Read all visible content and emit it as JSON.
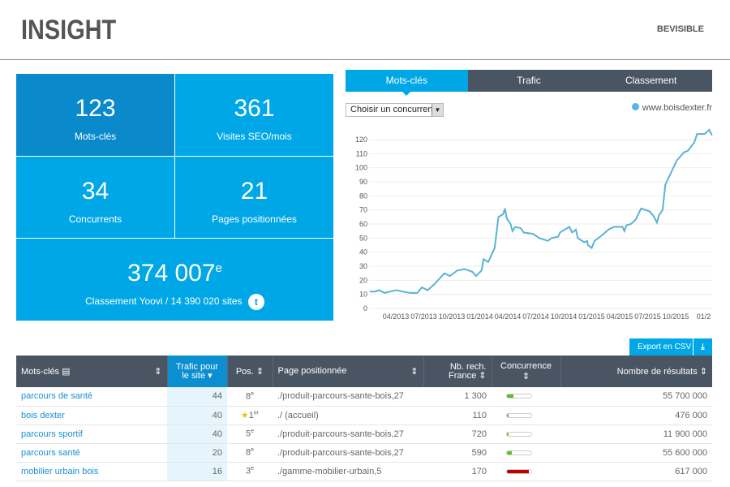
{
  "header": {
    "logo": "INSIGHT",
    "brand": "BEVISIBLE"
  },
  "tiles": [
    {
      "value": "123",
      "label": "Mots-clés"
    },
    {
      "value": "361",
      "label": "Visites SEO/mois"
    },
    {
      "value": "34",
      "label": "Concurrents"
    },
    {
      "value": "21",
      "label": "Pages positionnées"
    },
    {
      "value": "374 007",
      "sup": "e",
      "label": "Classement Yoovi / 14 390 020 sites"
    }
  ],
  "tabs": [
    "Mots-clés",
    "Trafic",
    "Classement"
  ],
  "competitor_select": "Choisir un concurrent",
  "colors": {
    "accent": "#00a7e6",
    "dark": "#4a5563",
    "line": "#5ab3d6",
    "green": "#5cbf2a",
    "red": "#c00000"
  },
  "chart_data": {
    "type": "line",
    "legend": "www.boisdexter.fr",
    "legend_position": "top-right",
    "ylim": [
      0,
      130
    ],
    "yticks": [
      0,
      10,
      20,
      30,
      40,
      50,
      60,
      70,
      80,
      90,
      100,
      110,
      120
    ],
    "xticks": [
      "04/2013",
      "07/2013",
      "10/2013",
      "01/2014",
      "04/2014",
      "07/2014",
      "10/2014",
      "01/2015",
      "04/2015",
      "07/2015",
      "10/2015",
      "01/2"
    ],
    "x_unit": "months since 04/2013",
    "series": [
      {
        "name": "www.boisdexter.fr",
        "points": [
          [
            -2.8,
            12
          ],
          [
            -2.2,
            12
          ],
          [
            -1.8,
            13
          ],
          [
            -1.2,
            11
          ],
          [
            -0.6,
            12
          ],
          [
            0.1,
            13
          ],
          [
            0.7,
            12
          ],
          [
            1.5,
            11
          ],
          [
            2.3,
            11
          ],
          [
            2.8,
            15
          ],
          [
            3.4,
            13
          ],
          [
            4.1,
            17
          ],
          [
            5.2,
            25
          ],
          [
            5.8,
            23
          ],
          [
            6.6,
            27
          ],
          [
            7.4,
            28
          ],
          [
            8.2,
            26
          ],
          [
            8.6,
            23
          ],
          [
            9.2,
            27
          ],
          [
            9.4,
            35
          ],
          [
            9.9,
            33
          ],
          [
            10.6,
            43
          ],
          [
            11.0,
            65
          ],
          [
            11.5,
            67
          ],
          [
            11.7,
            71
          ],
          [
            11.9,
            64
          ],
          [
            12.3,
            60
          ],
          [
            12.5,
            55
          ],
          [
            12.8,
            58
          ],
          [
            13.4,
            57
          ],
          [
            13.7,
            54
          ],
          [
            14.7,
            53
          ],
          [
            15.4,
            50
          ],
          [
            16.3,
            48
          ],
          [
            16.7,
            50
          ],
          [
            17.4,
            51
          ],
          [
            17.6,
            54
          ],
          [
            18.6,
            58
          ],
          [
            18.9,
            54
          ],
          [
            19.3,
            56
          ],
          [
            19.5,
            50
          ],
          [
            20.2,
            47
          ],
          [
            20.5,
            48
          ],
          [
            20.6,
            45
          ],
          [
            21.0,
            43
          ],
          [
            21.3,
            48
          ],
          [
            22.1,
            52
          ],
          [
            22.8,
            56
          ],
          [
            23.4,
            58
          ],
          [
            24.3,
            58
          ],
          [
            24.5,
            55
          ],
          [
            24.7,
            59
          ],
          [
            25.2,
            60
          ],
          [
            25.7,
            63
          ],
          [
            26.3,
            71
          ],
          [
            27.2,
            69
          ],
          [
            27.6,
            66
          ],
          [
            28.0,
            61
          ],
          [
            28.2,
            66
          ],
          [
            28.6,
            70
          ],
          [
            28.9,
            88
          ],
          [
            29.4,
            95
          ],
          [
            30.1,
            105
          ],
          [
            30.9,
            111
          ],
          [
            31.3,
            112
          ],
          [
            32.0,
            118
          ],
          [
            32.3,
            124
          ],
          [
            33.1,
            124
          ],
          [
            33.6,
            127
          ],
          [
            33.9,
            123
          ]
        ]
      }
    ]
  },
  "export_label": "Export en CSV",
  "table": {
    "headers": [
      "Mots-clés",
      "Trafic pour le site",
      "Pos.",
      "Page positionnée",
      "Nb. rech. France",
      "Concurrence",
      "Nombre de résultats"
    ],
    "rows": [
      {
        "kw": "parcours de santé",
        "traffic": "44",
        "pos": "8",
        "sup": "e",
        "star": "",
        "page": "./produit-parcours-sante-bois,27",
        "searches": "1 300",
        "competition": 0.25,
        "results": "55 700 000"
      },
      {
        "kw": "bois dexter",
        "traffic": "40",
        "pos": "1",
        "sup": "er",
        "star": "★",
        "page": "./ (accueil)",
        "searches": "110",
        "competition": 0.08,
        "results": "476 000"
      },
      {
        "kw": "parcours sportif",
        "traffic": "40",
        "pos": "5",
        "sup": "e",
        "star": "",
        "page": "./produit-parcours-sante-bois,27",
        "searches": "720",
        "competition": 0.08,
        "results": "11 900 000"
      },
      {
        "kw": "parcours santé",
        "traffic": "20",
        "pos": "8",
        "sup": "e",
        "star": "",
        "page": "./produit-parcours-sante-bois,27",
        "searches": "590",
        "competition": 0.2,
        "results": "55 600 000"
      },
      {
        "kw": "mobilier urbain bois",
        "traffic": "16",
        "pos": "3",
        "sup": "e",
        "star": "",
        "page": "./gamme-mobilier-urbain,5",
        "searches": "170",
        "competition": 0.9,
        "results": "617 000"
      }
    ]
  }
}
